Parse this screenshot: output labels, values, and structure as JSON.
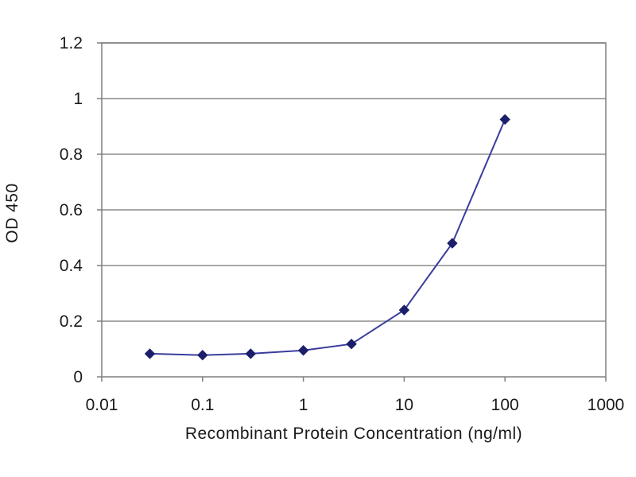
{
  "chart_data": {
    "type": "line",
    "title": "",
    "xlabel": "Recombinant Protein Concentration (ng/ml)",
    "ylabel": "OD 450",
    "xscale": "log",
    "xlim": [
      0.01,
      1000
    ],
    "ylim": [
      0,
      1.2
    ],
    "xticks": [
      "0.01",
      "0.1",
      "1",
      "10",
      "100",
      "1000"
    ],
    "yticks": [
      "0",
      "0.2",
      "0.4",
      "0.6",
      "0.8",
      "1",
      "1.2"
    ],
    "grid": "horizontal",
    "legend": "none",
    "series": [
      {
        "color": "#3a3d9c",
        "marker_color": "#1b1f6b",
        "x": [
          0.03,
          0.1,
          0.3,
          1,
          3,
          10,
          30,
          100
        ],
        "y": [
          0.083,
          0.078,
          0.083,
          0.095,
          0.118,
          0.24,
          0.48,
          0.925
        ]
      }
    ]
  }
}
